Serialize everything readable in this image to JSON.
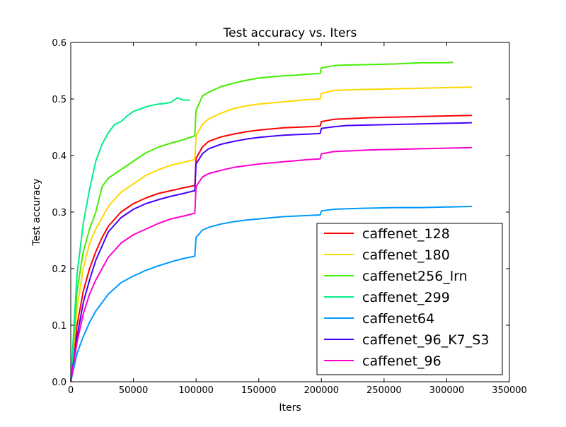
{
  "chart_data": {
    "type": "line",
    "title": "Test accuracy  vs. Iters",
    "xlabel": "Iters",
    "ylabel": "Test accuracy",
    "xlim": [
      0,
      350000
    ],
    "ylim": [
      0.0,
      0.6
    ],
    "xticks": [
      0,
      50000,
      100000,
      150000,
      200000,
      250000,
      300000,
      350000
    ],
    "xtick_labels": [
      "0",
      "50000",
      "100000",
      "150000",
      "200000",
      "250000",
      "300000",
      "350000"
    ],
    "yticks": [
      0.0,
      0.1,
      0.2,
      0.3,
      0.4,
      0.5,
      0.6
    ],
    "ytick_labels": [
      "0.0",
      "0.1",
      "0.2",
      "0.3",
      "0.4",
      "0.5",
      "0.6"
    ],
    "grid": false,
    "legend_position": "lower-right",
    "series": [
      {
        "name": "caffenet_128",
        "color": "#ff0000",
        "points": [
          [
            0,
            0.0
          ],
          [
            5000,
            0.1
          ],
          [
            10000,
            0.16
          ],
          [
            15000,
            0.2
          ],
          [
            20000,
            0.23
          ],
          [
            25000,
            0.255
          ],
          [
            30000,
            0.275
          ],
          [
            40000,
            0.3
          ],
          [
            50000,
            0.315
          ],
          [
            60000,
            0.325
          ],
          [
            70000,
            0.333
          ],
          [
            80000,
            0.338
          ],
          [
            90000,
            0.343
          ],
          [
            99000,
            0.347
          ],
          [
            100000,
            0.395
          ],
          [
            105000,
            0.415
          ],
          [
            110000,
            0.425
          ],
          [
            120000,
            0.433
          ],
          [
            130000,
            0.438
          ],
          [
            140000,
            0.442
          ],
          [
            150000,
            0.445
          ],
          [
            160000,
            0.447
          ],
          [
            170000,
            0.449
          ],
          [
            180000,
            0.45
          ],
          [
            190000,
            0.451
          ],
          [
            199000,
            0.452
          ],
          [
            200000,
            0.46
          ],
          [
            210000,
            0.464
          ],
          [
            220000,
            0.465
          ],
          [
            240000,
            0.467
          ],
          [
            260000,
            0.468
          ],
          [
            280000,
            0.469
          ],
          [
            300000,
            0.47
          ],
          [
            320000,
            0.471
          ]
        ]
      },
      {
        "name": "caffenet_180",
        "color": "#ffd700",
        "points": [
          [
            0,
            0.0
          ],
          [
            5000,
            0.13
          ],
          [
            10000,
            0.2
          ],
          [
            15000,
            0.245
          ],
          [
            20000,
            0.27
          ],
          [
            25000,
            0.29
          ],
          [
            30000,
            0.31
          ],
          [
            40000,
            0.335
          ],
          [
            50000,
            0.35
          ],
          [
            60000,
            0.365
          ],
          [
            70000,
            0.375
          ],
          [
            80000,
            0.383
          ],
          [
            90000,
            0.388
          ],
          [
            99000,
            0.393
          ],
          [
            100000,
            0.435
          ],
          [
            105000,
            0.455
          ],
          [
            110000,
            0.465
          ],
          [
            120000,
            0.475
          ],
          [
            130000,
            0.483
          ],
          [
            140000,
            0.488
          ],
          [
            150000,
            0.491
          ],
          [
            160000,
            0.493
          ],
          [
            170000,
            0.495
          ],
          [
            180000,
            0.497
          ],
          [
            190000,
            0.499
          ],
          [
            199000,
            0.5
          ],
          [
            200000,
            0.51
          ],
          [
            210000,
            0.515
          ],
          [
            220000,
            0.516
          ],
          [
            240000,
            0.517
          ],
          [
            260000,
            0.518
          ],
          [
            280000,
            0.519
          ],
          [
            300000,
            0.52
          ],
          [
            320000,
            0.521
          ]
        ]
      },
      {
        "name": "caffenet256_lrn",
        "color": "#44ee00",
        "points": [
          [
            0,
            0.0
          ],
          [
            5000,
            0.16
          ],
          [
            10000,
            0.23
          ],
          [
            15000,
            0.27
          ],
          [
            20000,
            0.3
          ],
          [
            25000,
            0.345
          ],
          [
            30000,
            0.36
          ],
          [
            40000,
            0.375
          ],
          [
            50000,
            0.39
          ],
          [
            60000,
            0.405
          ],
          [
            70000,
            0.415
          ],
          [
            80000,
            0.422
          ],
          [
            90000,
            0.428
          ],
          [
            99000,
            0.435
          ],
          [
            100000,
            0.48
          ],
          [
            105000,
            0.505
          ],
          [
            110000,
            0.512
          ],
          [
            120000,
            0.522
          ],
          [
            130000,
            0.528
          ],
          [
            140000,
            0.533
          ],
          [
            150000,
            0.537
          ],
          [
            160000,
            0.539
          ],
          [
            170000,
            0.541
          ],
          [
            180000,
            0.542
          ],
          [
            190000,
            0.544
          ],
          [
            199000,
            0.545
          ],
          [
            200000,
            0.555
          ],
          [
            210000,
            0.559
          ],
          [
            220000,
            0.56
          ],
          [
            240000,
            0.561
          ],
          [
            260000,
            0.562
          ],
          [
            280000,
            0.564
          ],
          [
            300000,
            0.564
          ],
          [
            305000,
            0.565
          ]
        ]
      },
      {
        "name": "caffenet_299",
        "color": "#00ee88",
        "points": [
          [
            0,
            0.0
          ],
          [
            5000,
            0.19
          ],
          [
            10000,
            0.28
          ],
          [
            15000,
            0.34
          ],
          [
            20000,
            0.39
          ],
          [
            25000,
            0.42
          ],
          [
            30000,
            0.44
          ],
          [
            35000,
            0.455
          ],
          [
            40000,
            0.46
          ],
          [
            45000,
            0.47
          ],
          [
            50000,
            0.478
          ],
          [
            55000,
            0.482
          ],
          [
            60000,
            0.486
          ],
          [
            65000,
            0.489
          ],
          [
            70000,
            0.491
          ],
          [
            75000,
            0.492
          ],
          [
            80000,
            0.494
          ],
          [
            85000,
            0.502
          ],
          [
            90000,
            0.498
          ],
          [
            95000,
            0.498
          ]
        ]
      },
      {
        "name": "caffenet64",
        "color": "#0099ff",
        "points": [
          [
            0,
            0.0
          ],
          [
            5000,
            0.05
          ],
          [
            10000,
            0.08
          ],
          [
            15000,
            0.105
          ],
          [
            20000,
            0.125
          ],
          [
            25000,
            0.14
          ],
          [
            30000,
            0.155
          ],
          [
            40000,
            0.175
          ],
          [
            50000,
            0.187
          ],
          [
            60000,
            0.197
          ],
          [
            70000,
            0.205
          ],
          [
            80000,
            0.212
          ],
          [
            90000,
            0.218
          ],
          [
            99000,
            0.222
          ],
          [
            100000,
            0.255
          ],
          [
            105000,
            0.268
          ],
          [
            110000,
            0.273
          ],
          [
            120000,
            0.279
          ],
          [
            130000,
            0.283
          ],
          [
            140000,
            0.286
          ],
          [
            150000,
            0.288
          ],
          [
            160000,
            0.29
          ],
          [
            170000,
            0.292
          ],
          [
            180000,
            0.293
          ],
          [
            190000,
            0.294
          ],
          [
            199000,
            0.295
          ],
          [
            200000,
            0.302
          ],
          [
            210000,
            0.305
          ],
          [
            220000,
            0.306
          ],
          [
            240000,
            0.307
          ],
          [
            260000,
            0.308
          ],
          [
            280000,
            0.308
          ],
          [
            300000,
            0.309
          ],
          [
            320000,
            0.31
          ]
        ]
      },
      {
        "name": "caffenet_96_K7_S3",
        "color": "#4400ff",
        "points": [
          [
            0,
            0.0
          ],
          [
            5000,
            0.08
          ],
          [
            10000,
            0.14
          ],
          [
            15000,
            0.18
          ],
          [
            20000,
            0.215
          ],
          [
            25000,
            0.24
          ],
          [
            30000,
            0.265
          ],
          [
            40000,
            0.29
          ],
          [
            50000,
            0.305
          ],
          [
            60000,
            0.315
          ],
          [
            70000,
            0.322
          ],
          [
            80000,
            0.328
          ],
          [
            90000,
            0.333
          ],
          [
            99000,
            0.338
          ],
          [
            100000,
            0.385
          ],
          [
            105000,
            0.403
          ],
          [
            110000,
            0.412
          ],
          [
            120000,
            0.42
          ],
          [
            130000,
            0.425
          ],
          [
            140000,
            0.429
          ],
          [
            150000,
            0.432
          ],
          [
            160000,
            0.434
          ],
          [
            170000,
            0.436
          ],
          [
            180000,
            0.437
          ],
          [
            190000,
            0.438
          ],
          [
            199000,
            0.439
          ],
          [
            200000,
            0.448
          ],
          [
            210000,
            0.451
          ],
          [
            220000,
            0.453
          ],
          [
            240000,
            0.454
          ],
          [
            260000,
            0.455
          ],
          [
            280000,
            0.456
          ],
          [
            300000,
            0.457
          ],
          [
            320000,
            0.458
          ]
        ]
      },
      {
        "name": "caffenet_96",
        "color": "#ff00cc",
        "points": [
          [
            0,
            0.0
          ],
          [
            5000,
            0.07
          ],
          [
            10000,
            0.12
          ],
          [
            15000,
            0.155
          ],
          [
            20000,
            0.18
          ],
          [
            25000,
            0.2
          ],
          [
            30000,
            0.22
          ],
          [
            40000,
            0.245
          ],
          [
            50000,
            0.26
          ],
          [
            60000,
            0.27
          ],
          [
            70000,
            0.28
          ],
          [
            80000,
            0.288
          ],
          [
            90000,
            0.293
          ],
          [
            99000,
            0.298
          ],
          [
            100000,
            0.345
          ],
          [
            105000,
            0.362
          ],
          [
            110000,
            0.368
          ],
          [
            120000,
            0.374
          ],
          [
            130000,
            0.379
          ],
          [
            140000,
            0.382
          ],
          [
            150000,
            0.385
          ],
          [
            160000,
            0.387
          ],
          [
            170000,
            0.389
          ],
          [
            180000,
            0.391
          ],
          [
            190000,
            0.393
          ],
          [
            199000,
            0.394
          ],
          [
            200000,
            0.403
          ],
          [
            210000,
            0.407
          ],
          [
            220000,
            0.408
          ],
          [
            240000,
            0.41
          ],
          [
            260000,
            0.411
          ],
          [
            280000,
            0.412
          ],
          [
            300000,
            0.413
          ],
          [
            320000,
            0.414
          ]
        ]
      }
    ]
  }
}
